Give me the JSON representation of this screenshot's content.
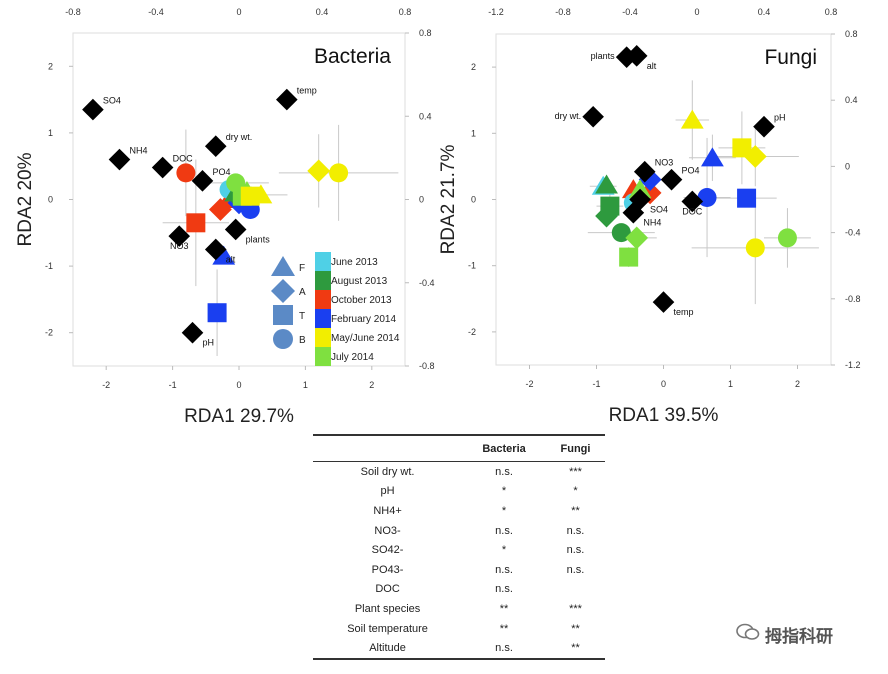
{
  "colors": {
    "June 2013": "#4fd0e6",
    "August 2013": "#2e9a3e",
    "October 2013": "#f03a12",
    "February 2014": "#1a3ff0",
    "May/June 2014": "#f2ee00",
    "July 2014": "#7fe040",
    "env": "#000000",
    "errbar": "#c8c8c8"
  },
  "legend": {
    "shapes": [
      {
        "shape": "triangle",
        "label": "F"
      },
      {
        "shape": "diamond",
        "label": "A"
      },
      {
        "shape": "square",
        "label": "T"
      },
      {
        "shape": "circle",
        "label": "B"
      }
    ],
    "dates": [
      "June 2013",
      "August 2013",
      "October 2013",
      "February 2014",
      "May/June 2014",
      "July 2014"
    ]
  },
  "chart_data": [
    {
      "type": "scatter",
      "title": "Bacteria",
      "xlabel": "RDA1 29.7%",
      "ylabel": "RDA2 20%",
      "xlim": [
        -2.5,
        2.5
      ],
      "ylim": [
        -2.5,
        2.5
      ],
      "top_xlim": [
        -0.8,
        0.8
      ],
      "right_ylim": [
        -0.8,
        0.8
      ],
      "xticks": [
        -2,
        -1,
        0,
        1,
        2
      ],
      "yticks": [
        -2,
        -1,
        0,
        1,
        2
      ],
      "top_ticks": [
        -0.8,
        -0.4,
        0,
        0.4,
        0.8
      ],
      "right_ticks": [
        -0.8,
        -0.4,
        0,
        0.4,
        0.8
      ],
      "env": [
        {
          "label": "SO4",
          "x": -2.2,
          "y": 1.35
        },
        {
          "label": "NH4",
          "x": -1.8,
          "y": 0.6
        },
        {
          "label": "DOC",
          "x": -1.15,
          "y": 0.48
        },
        {
          "label": "dry wt.",
          "x": -0.35,
          "y": 0.8
        },
        {
          "label": "PO4",
          "x": -0.55,
          "y": 0.28
        },
        {
          "label": "temp",
          "x": 0.72,
          "y": 1.5
        },
        {
          "label": "plants",
          "x": -0.05,
          "y": -0.45
        },
        {
          "label": "NO3",
          "x": -0.9,
          "y": -0.55
        },
        {
          "label": "alt",
          "x": -0.35,
          "y": -0.75
        },
        {
          "label": "pH",
          "x": -0.7,
          "y": -2.0
        }
      ],
      "samples": [
        {
          "date": "October 2013",
          "shape": "circle",
          "x": -0.8,
          "y": 0.4,
          "xerr": 0,
          "yerr": 0.65
        },
        {
          "date": "October 2013",
          "shape": "square",
          "x": -0.65,
          "y": -0.35,
          "xerr": 0.5,
          "yerr": 0.95
        },
        {
          "date": "October 2013",
          "shape": "diamond",
          "x": -0.28,
          "y": -0.15,
          "xerr": 0,
          "yerr": 0
        },
        {
          "date": "October 2013",
          "shape": "triangle",
          "x": -0.15,
          "y": 0.0,
          "xerr": 0,
          "yerr": 0
        },
        {
          "date": "February 2014",
          "shape": "square",
          "x": -0.33,
          "y": -1.7,
          "xerr": 0,
          "yerr": 0.65
        },
        {
          "date": "February 2014",
          "shape": "triangle",
          "x": -0.23,
          "y": -0.85,
          "xerr": 0,
          "yerr": 0
        },
        {
          "date": "February 2014",
          "shape": "circle",
          "x": 0.17,
          "y": -0.15,
          "xerr": 0,
          "yerr": 0
        },
        {
          "date": "February 2014",
          "shape": "diamond",
          "x": 0.0,
          "y": -0.05,
          "xerr": 0,
          "yerr": 0
        },
        {
          "date": "June 2013",
          "shape": "circle",
          "x": -0.15,
          "y": 0.15,
          "xerr": 0,
          "yerr": 0
        },
        {
          "date": "June 2013",
          "shape": "triangle",
          "x": -0.1,
          "y": 0.2,
          "xerr": 0,
          "yerr": 0
        },
        {
          "date": "August 2013",
          "shape": "triangle",
          "x": -0.05,
          "y": 0.1,
          "xerr": 0,
          "yerr": 0
        },
        {
          "date": "August 2013",
          "shape": "circle",
          "x": 0.0,
          "y": 0.05,
          "xerr": 0,
          "yerr": 0
        },
        {
          "date": "July 2014",
          "shape": "circle",
          "x": -0.05,
          "y": 0.25,
          "xerr": 0.5,
          "yerr": 0
        },
        {
          "date": "July 2014",
          "shape": "triangle",
          "x": 0.12,
          "y": 0.12,
          "xerr": 0,
          "yerr": 0
        },
        {
          "date": "July 2014",
          "shape": "square",
          "x": 0.05,
          "y": 0.05,
          "xerr": 0,
          "yerr": 0
        },
        {
          "date": "May/June 2014",
          "shape": "square",
          "x": 0.17,
          "y": 0.05,
          "xerr": 0,
          "yerr": 0
        },
        {
          "date": "May/June 2014",
          "shape": "triangle",
          "x": 0.33,
          "y": 0.07,
          "xerr": 0.4,
          "yerr": 0
        },
        {
          "date": "May/June 2014",
          "shape": "diamond",
          "x": 1.2,
          "y": 0.43,
          "xerr": 0,
          "yerr": 0.55
        },
        {
          "date": "May/June 2014",
          "shape": "circle",
          "x": 1.5,
          "y": 0.4,
          "xerr": 0.9,
          "yerr": 0.72
        }
      ]
    },
    {
      "type": "scatter",
      "title": "Fungi",
      "xlabel": "RDA1 39.5%",
      "ylabel": "RDA2 21.7%",
      "xlim": [
        -2.5,
        2.5
      ],
      "ylim": [
        -2.5,
        2.5
      ],
      "top_xlim": [
        -1.2,
        0.8
      ],
      "right_ylim": [
        -1.2,
        0.8
      ],
      "xticks": [
        -2,
        -1,
        0,
        1,
        2
      ],
      "yticks": [
        -2,
        -1,
        0,
        1,
        2
      ],
      "top_ticks": [
        -1.2,
        -0.8,
        -0.4,
        0,
        0.4,
        0.8
      ],
      "right_ticks": [
        -1.2,
        -0.8,
        -0.4,
        0,
        0.4,
        0.8
      ],
      "env": [
        {
          "label": "plants",
          "x": -0.55,
          "y": 2.15
        },
        {
          "label": "alt",
          "x": -0.4,
          "y": 2.17
        },
        {
          "label": "dry wt.",
          "x": -1.05,
          "y": 1.25
        },
        {
          "label": "pH",
          "x": 1.5,
          "y": 1.1
        },
        {
          "label": "NO3",
          "x": -0.28,
          "y": 0.42
        },
        {
          "label": "PO4",
          "x": 0.12,
          "y": 0.3
        },
        {
          "label": "SO4",
          "x": -0.35,
          "y": 0.0
        },
        {
          "label": "NH4",
          "x": -0.45,
          "y": -0.2
        },
        {
          "label": "DOC",
          "x": 0.43,
          "y": -0.03
        },
        {
          "label": "temp",
          "x": 0.0,
          "y": -1.55
        }
      ],
      "samples": [
        {
          "date": "May/June 2014",
          "shape": "triangle",
          "x": 0.43,
          "y": 1.2,
          "xerr": 0.25,
          "yerr": 0.6
        },
        {
          "date": "February 2014",
          "shape": "triangle",
          "x": 0.73,
          "y": 0.63,
          "xerr": 0.35,
          "yerr": 0.35
        },
        {
          "date": "May/June 2014",
          "shape": "square",
          "x": 1.17,
          "y": 0.78,
          "xerr": 0.35,
          "yerr": 0.55
        },
        {
          "date": "May/June 2014",
          "shape": "diamond",
          "x": 1.37,
          "y": 0.65,
          "xerr": 0.65,
          "yerr": 0.45
        },
        {
          "date": "February 2014",
          "shape": "circle",
          "x": 0.65,
          "y": 0.03,
          "xerr": 0.35,
          "yerr": 0.9
        },
        {
          "date": "February 2014",
          "shape": "square",
          "x": 1.24,
          "y": 0.02,
          "xerr": 0.45,
          "yerr": 0
        },
        {
          "date": "May/June 2014",
          "shape": "circle",
          "x": 1.37,
          "y": -0.73,
          "xerr": 0.95,
          "yerr": 0.85
        },
        {
          "date": "July 2014",
          "shape": "circle",
          "x": 1.85,
          "y": -0.58,
          "xerr": 0.35,
          "yerr": 0.45
        },
        {
          "date": "June 2013",
          "shape": "triangle",
          "x": -0.9,
          "y": 0.2,
          "xerr": 0.2,
          "yerr": 0
        },
        {
          "date": "August 2013",
          "shape": "triangle",
          "x": -0.85,
          "y": 0.22,
          "xerr": 0,
          "yerr": 0
        },
        {
          "date": "August 2013",
          "shape": "square",
          "x": -0.8,
          "y": -0.1,
          "xerr": 0.2,
          "yerr": 0.2
        },
        {
          "date": "August 2013",
          "shape": "diamond",
          "x": -0.85,
          "y": -0.25,
          "xerr": 0.15,
          "yerr": 0
        },
        {
          "date": "August 2013",
          "shape": "circle",
          "x": -0.63,
          "y": -0.5,
          "xerr": 0.5,
          "yerr": 0
        },
        {
          "date": "July 2014",
          "shape": "diamond",
          "x": -0.4,
          "y": -0.58,
          "xerr": 0.3,
          "yerr": 0
        },
        {
          "date": "July 2014",
          "shape": "square",
          "x": -0.52,
          "y": -0.87,
          "xerr": 0,
          "yerr": 0.15
        },
        {
          "date": "October 2013",
          "shape": "triangle",
          "x": -0.45,
          "y": 0.15,
          "xerr": 0,
          "yerr": 0
        },
        {
          "date": "October 2013",
          "shape": "diamond",
          "x": -0.2,
          "y": 0.1,
          "xerr": 0,
          "yerr": 0
        },
        {
          "date": "February 2014",
          "shape": "diamond",
          "x": -0.2,
          "y": 0.3,
          "xerr": 0,
          "yerr": 0
        },
        {
          "date": "June 2013",
          "shape": "circle",
          "x": -0.45,
          "y": -0.05,
          "xerr": 0,
          "yerr": 0
        },
        {
          "date": "July 2014",
          "shape": "triangle",
          "x": -0.35,
          "y": 0.15,
          "xerr": 0,
          "yerr": 0
        }
      ]
    }
  ],
  "table": {
    "headers": [
      "",
      "Bacteria",
      "Fungi"
    ],
    "rows": [
      [
        "Soil dry wt.",
        "n.s.",
        "***"
      ],
      [
        "pH",
        "*",
        "*"
      ],
      [
        "NH4+",
        "*",
        "**"
      ],
      [
        "NO3-",
        "n.s.",
        "n.s."
      ],
      [
        "SO42-",
        "*",
        "n.s."
      ],
      [
        "PO43-",
        "n.s.",
        "n.s."
      ],
      [
        "DOC",
        "n.s.",
        ""
      ],
      [
        "Plant species",
        "**",
        "***"
      ],
      [
        "Soil temperature",
        "**",
        "**"
      ],
      [
        "Altitude",
        "n.s.",
        "**"
      ]
    ]
  },
  "watermark": "拇指科研"
}
